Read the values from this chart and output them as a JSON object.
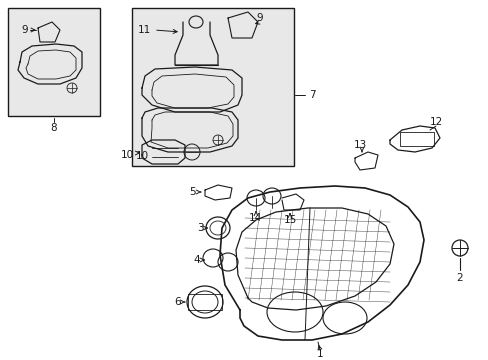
{
  "bg_color": "#ffffff",
  "line_color": "#1a1a1a",
  "box_fill": "#e0e0e0",
  "lw_main": 1.0,
  "lw_thin": 0.6,
  "font_size": 7.5,
  "fig_w": 4.89,
  "fig_h": 3.6,
  "dpi": 100
}
